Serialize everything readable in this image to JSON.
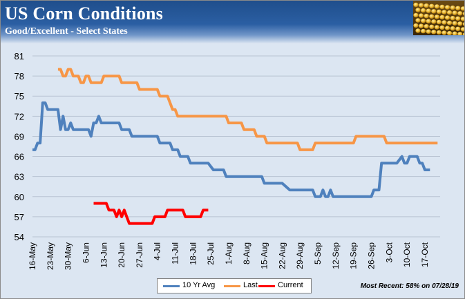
{
  "title": "US Corn Conditions",
  "subtitle": "Good/Excellent - Select States",
  "footnote": "Most Recent: 58% on 07/28/19",
  "chart_data": {
    "type": "line",
    "title": "US Corn Conditions",
    "subtitle": "Good/Excellent - Select States",
    "ylim": [
      54,
      81
    ],
    "yticks": [
      54,
      57,
      60,
      63,
      66,
      69,
      72,
      75,
      78,
      81
    ],
    "xlim": [
      "05-16",
      "10-23"
    ],
    "xticks": [
      "16-May",
      "23-May",
      "30-May",
      "6-Jun",
      "13-Jun",
      "20-Jun",
      "27-Jun",
      "4-Jul",
      "11-Jul",
      "18-Jul",
      "25-Jul",
      "1-Aug",
      "8-Aug",
      "15-Aug",
      "22-Aug",
      "29-Aug",
      "5-Sep",
      "12-Sep",
      "19-Sep",
      "26-Sep",
      "3-Oct",
      "10-Oct",
      "17-Oct"
    ],
    "grid": "horizontal",
    "legend": "bottom",
    "series": [
      {
        "name": "10 Yr Avg",
        "color": "#4f81bd",
        "points": [
          [
            "05-16",
            67
          ],
          [
            "05-17",
            67
          ],
          [
            "05-18",
            68
          ],
          [
            "05-19",
            68
          ],
          [
            "05-20",
            74
          ],
          [
            "05-21",
            74
          ],
          [
            "05-22",
            73
          ],
          [
            "05-25",
            73
          ],
          [
            "05-26",
            73
          ],
          [
            "05-27",
            70
          ],
          [
            "05-28",
            72
          ],
          [
            "05-29",
            70
          ],
          [
            "05-30",
            70
          ],
          [
            "05-31",
            71
          ],
          [
            "06-01",
            70
          ],
          [
            "06-07",
            70
          ],
          [
            "06-08",
            69
          ],
          [
            "06-09",
            71
          ],
          [
            "06-10",
            71
          ],
          [
            "06-11",
            72
          ],
          [
            "06-12",
            71
          ],
          [
            "06-19",
            71
          ],
          [
            "06-20",
            70
          ],
          [
            "06-23",
            70
          ],
          [
            "06-24",
            69
          ],
          [
            "07-04",
            69
          ],
          [
            "07-05",
            68
          ],
          [
            "07-09",
            68
          ],
          [
            "07-10",
            67
          ],
          [
            "07-12",
            67
          ],
          [
            "07-13",
            66
          ],
          [
            "07-16",
            66
          ],
          [
            "07-17",
            65
          ],
          [
            "07-23",
            65
          ],
          [
            "07-24",
            65
          ],
          [
            "07-26",
            64
          ],
          [
            "07-30",
            64
          ],
          [
            "07-31",
            63
          ],
          [
            "08-14",
            63
          ],
          [
            "08-15",
            62
          ],
          [
            "08-21",
            62
          ],
          [
            "08-22",
            62
          ],
          [
            "08-25",
            61
          ],
          [
            "08-29",
            61
          ],
          [
            "09-03",
            61
          ],
          [
            "09-04",
            60
          ],
          [
            "09-06",
            60
          ],
          [
            "09-07",
            61
          ],
          [
            "09-08",
            60
          ],
          [
            "09-09",
            60
          ],
          [
            "09-10",
            61
          ],
          [
            "09-11",
            60
          ],
          [
            "09-26",
            60
          ],
          [
            "09-27",
            61
          ],
          [
            "09-29",
            61
          ],
          [
            "09-30",
            65
          ],
          [
            "10-03",
            65
          ],
          [
            "10-06",
            65
          ],
          [
            "10-08",
            66
          ],
          [
            "10-09",
            65
          ],
          [
            "10-10",
            65
          ],
          [
            "10-11",
            66
          ],
          [
            "10-14",
            66
          ],
          [
            "10-15",
            65
          ],
          [
            "10-16",
            65
          ],
          [
            "10-17",
            64
          ],
          [
            "10-19",
            64
          ]
        ]
      },
      {
        "name": "Last",
        "color": "#f79646",
        "points": [
          [
            "05-26",
            79
          ],
          [
            "05-27",
            79
          ],
          [
            "05-28",
            78
          ],
          [
            "05-29",
            78
          ],
          [
            "05-30",
            79
          ],
          [
            "05-31",
            79
          ],
          [
            "06-01",
            78
          ],
          [
            "06-03",
            78
          ],
          [
            "06-04",
            77
          ],
          [
            "06-05",
            77
          ],
          [
            "06-06",
            78
          ],
          [
            "06-07",
            78
          ],
          [
            "06-08",
            77
          ],
          [
            "06-11",
            77
          ],
          [
            "06-12",
            77
          ],
          [
            "06-13",
            78
          ],
          [
            "06-19",
            78
          ],
          [
            "06-20",
            77
          ],
          [
            "06-26",
            77
          ],
          [
            "06-27",
            76
          ],
          [
            "07-04",
            76
          ],
          [
            "07-05",
            75
          ],
          [
            "07-08",
            75
          ],
          [
            "07-09",
            74
          ],
          [
            "07-10",
            73
          ],
          [
            "07-11",
            73
          ],
          [
            "07-12",
            72
          ],
          [
            "07-31",
            72
          ],
          [
            "08-01",
            71
          ],
          [
            "08-06",
            71
          ],
          [
            "08-07",
            70
          ],
          [
            "08-11",
            70
          ],
          [
            "08-12",
            69
          ],
          [
            "08-14",
            69
          ],
          [
            "08-15",
            69
          ],
          [
            "08-16",
            68
          ],
          [
            "08-28",
            68
          ],
          [
            "08-29",
            67
          ],
          [
            "09-03",
            67
          ],
          [
            "09-04",
            68
          ],
          [
            "09-18",
            68
          ],
          [
            "09-19",
            68
          ],
          [
            "09-20",
            69
          ],
          [
            "09-29",
            69
          ],
          [
            "10-01",
            69
          ],
          [
            "10-02",
            68
          ],
          [
            "10-22",
            68
          ]
        ]
      },
      {
        "name": "Current",
        "color": "#ff0000",
        "points": [
          [
            "06-09",
            59
          ],
          [
            "06-14",
            59
          ],
          [
            "06-15",
            58
          ],
          [
            "06-17",
            58
          ],
          [
            "06-18",
            57
          ],
          [
            "06-19",
            58
          ],
          [
            "06-20",
            57
          ],
          [
            "06-21",
            58
          ],
          [
            "06-22",
            57
          ],
          [
            "06-23",
            56
          ],
          [
            "07-02",
            56
          ],
          [
            "07-03",
            57
          ],
          [
            "07-07",
            57
          ],
          [
            "07-08",
            58
          ],
          [
            "07-14",
            58
          ],
          [
            "07-15",
            57
          ],
          [
            "07-21",
            57
          ],
          [
            "07-22",
            58
          ],
          [
            "07-24",
            58
          ]
        ]
      }
    ]
  }
}
